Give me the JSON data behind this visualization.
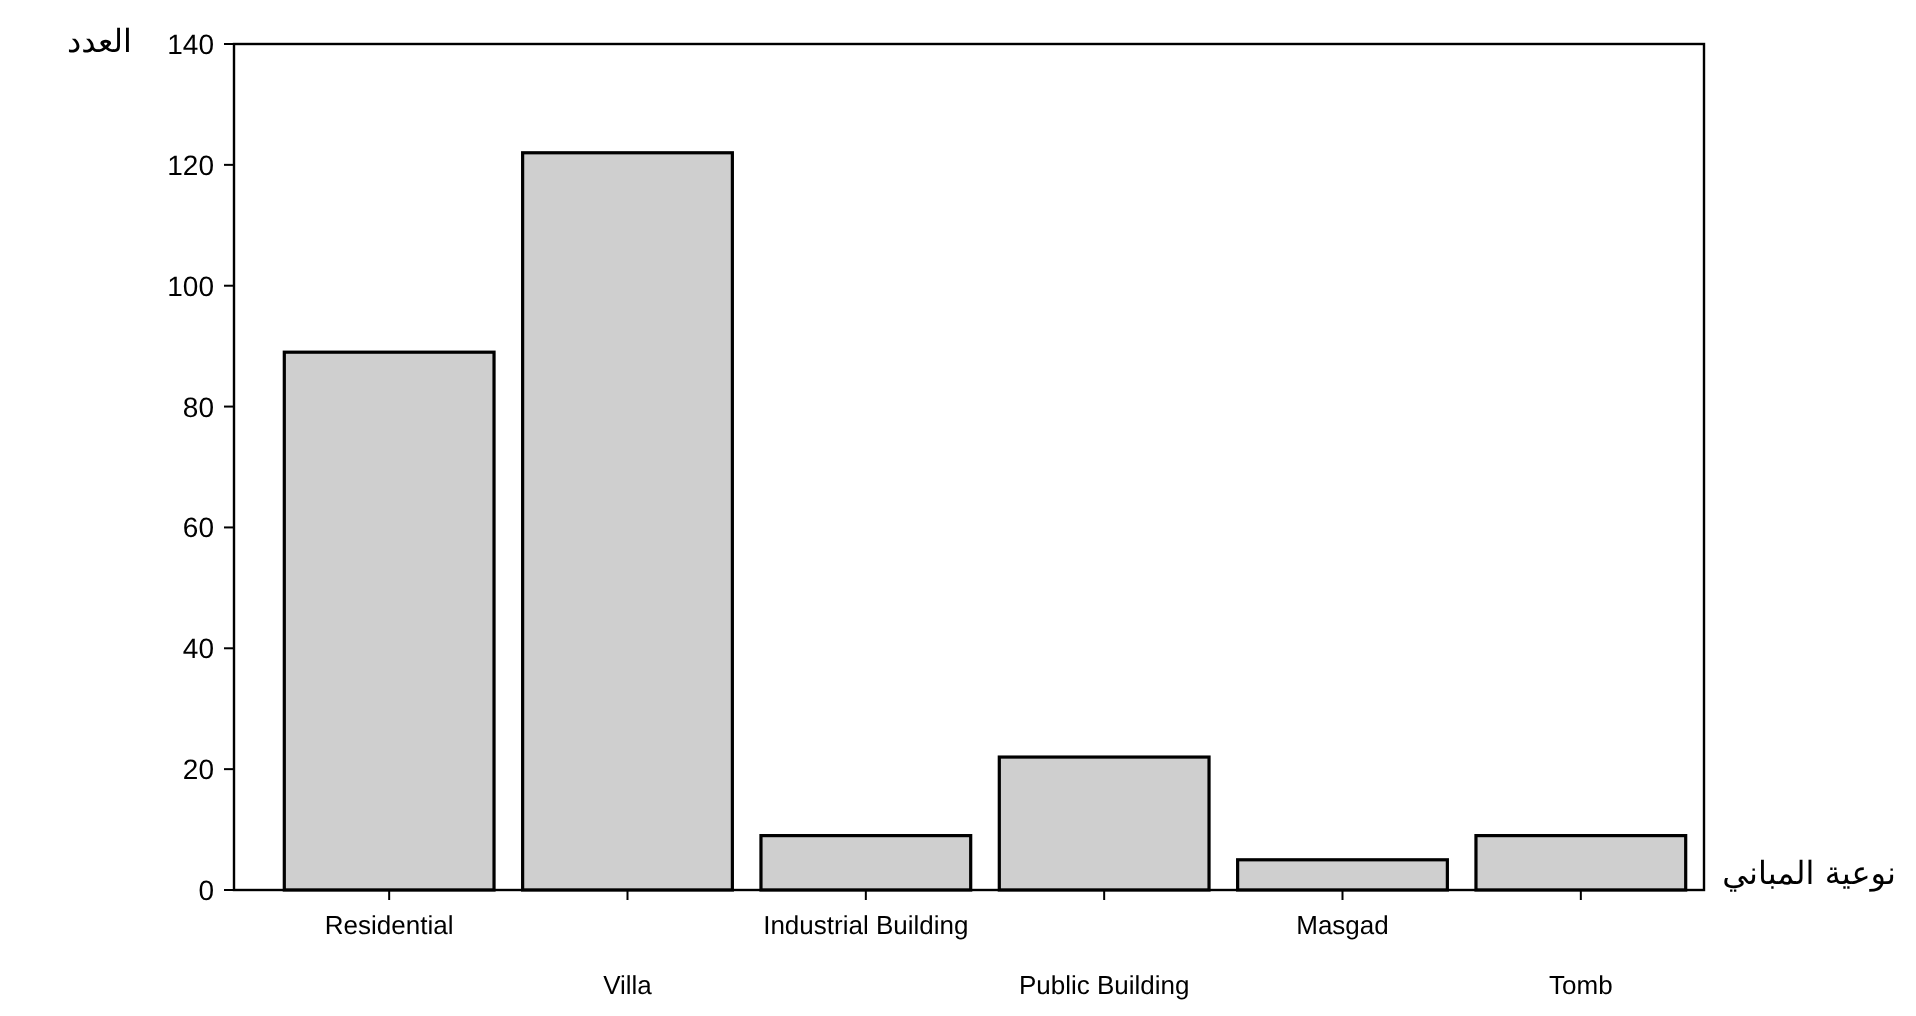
{
  "chart_data": {
    "type": "bar",
    "categories": [
      "Residential",
      "Villa",
      "Industrial  Building",
      "Public Building",
      "Masgad",
      "Tomb"
    ],
    "values": [
      89,
      122,
      9,
      22,
      5,
      9
    ],
    "color": "#cfcfcf",
    "xlabel": "نوعية المباني",
    "ylabel": "العدد",
    "ylim": [
      0,
      140
    ],
    "yticks": [
      0,
      20,
      40,
      60,
      80,
      100,
      120,
      140
    ],
    "grid": false
  }
}
